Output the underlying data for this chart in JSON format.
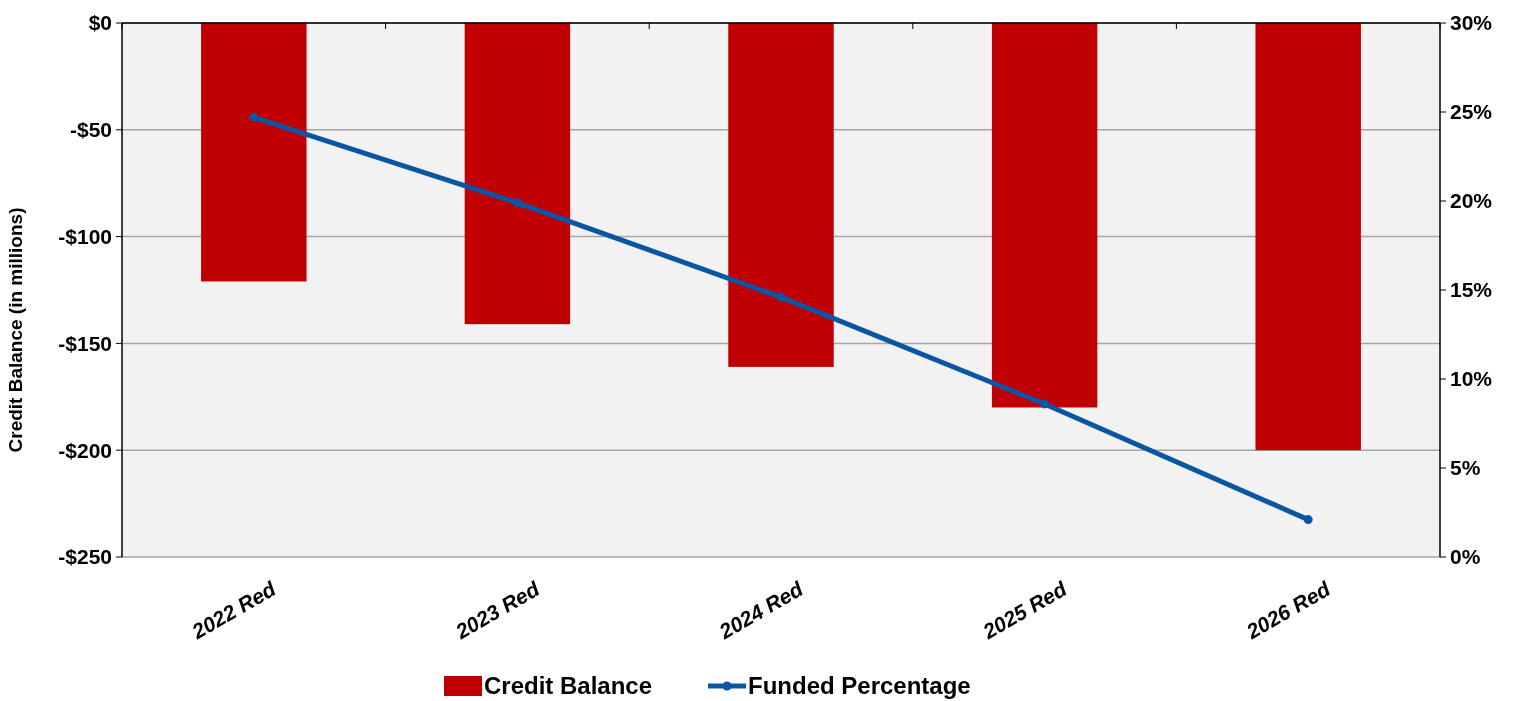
{
  "chart_data": {
    "type": "bar",
    "categories": [
      "2022 Red",
      "2023 Red",
      "2024 Red",
      "2025 Red",
      "2026 Red"
    ],
    "ylabel": "Credit Balance (in millions)",
    "ylim": [
      -250,
      0
    ],
    "yticks": [
      {
        "value": 0,
        "label": "$0"
      },
      {
        "value": -50,
        "label": "-$50"
      },
      {
        "value": -100,
        "label": "-$100"
      },
      {
        "value": -150,
        "label": "-$150"
      },
      {
        "value": -200,
        "label": "-$200"
      },
      {
        "value": -250,
        "label": "-$250"
      }
    ],
    "y2lim": [
      0,
      30
    ],
    "y2ticks": [
      {
        "value": 0,
        "label": "0%"
      },
      {
        "value": 5,
        "label": "5%"
      },
      {
        "value": 10,
        "label": "10%"
      },
      {
        "value": 15,
        "label": "15%"
      },
      {
        "value": 20,
        "label": "20%"
      },
      {
        "value": 25,
        "label": "25%"
      },
      {
        "value": 30,
        "label": "30%"
      }
    ],
    "grid": "y",
    "legend": "bottom",
    "series": [
      {
        "name": "Credit Balance",
        "color": "#c00000",
        "values": [
          -121,
          -141,
          -161,
          -180,
          -200
        ]
      },
      {
        "name": "Funded Percentage",
        "type": "line",
        "axis": "y2",
        "color": "#0b56a4",
        "marker": "circle",
        "values": [
          24.7,
          19.9,
          14.6,
          8.6,
          2.1
        ]
      }
    ]
  }
}
